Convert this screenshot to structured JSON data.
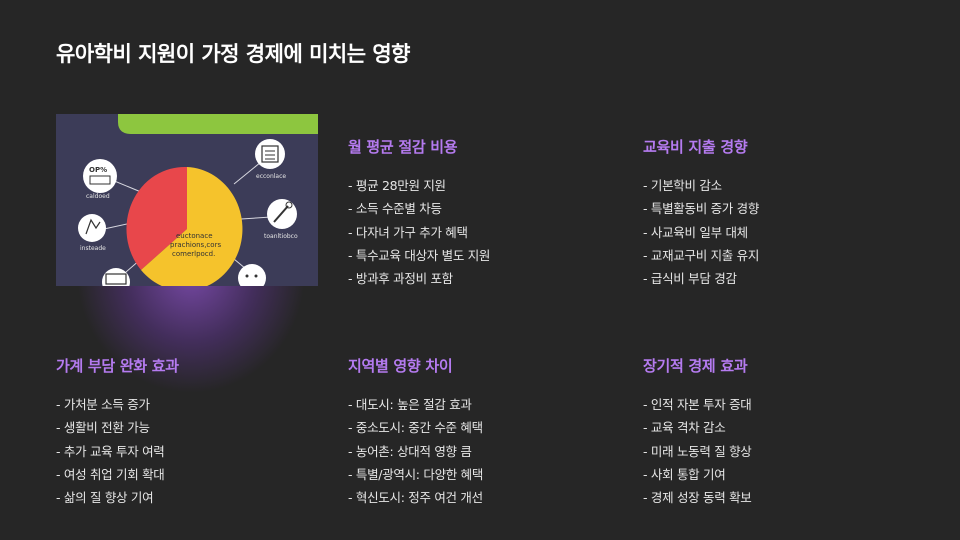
{
  "title": "유아학비 지원이 가정 경제에 미치는 영향",
  "image": {
    "icon_labels": [
      "OP%",
      "caldoed",
      "insteade",
      "ecconlace",
      "toanltiobco"
    ],
    "center_text": [
      "euctonace",
      "prachions,cors",
      "comerlpocd."
    ],
    "colors": {
      "pie_red": "#e8474b",
      "pie_yellow": "#f5c32c",
      "panel": "#3c3c58",
      "accent_green": "#8dc63f"
    }
  },
  "sections": [
    {
      "id": "monthly",
      "heading": "월 평균 절감 비용",
      "items": [
        "평균 28만원 지원",
        "소득 수준별 차등",
        "다자녀 가구 추가 혜택",
        "특수교육 대상자 별도 지원",
        "방과후 과정비 포함"
      ]
    },
    {
      "id": "education",
      "heading": "교육비 지출 경향",
      "items": [
        "기본학비 감소",
        "특별활동비 증가 경향",
        "사교육비 일부 대체",
        "교재교구비 지출 유지",
        "급식비 부담 경감"
      ]
    },
    {
      "id": "household",
      "heading": "가계 부담 완화 효과",
      "items": [
        "가처분 소득 증가",
        "생활비 전환 가능",
        "추가 교육 투자 여력",
        "여성 취업 기회 확대",
        "삶의 질 향상 기여"
      ]
    },
    {
      "id": "regional",
      "heading": "지역별 영향 차이",
      "items": [
        "대도시: 높은 절감 효과",
        "중소도시: 중간 수준 혜택",
        "농어촌: 상대적 영향 큼",
        "특별/광역시: 다양한 혜택",
        "혁신도시: 정주 여건 개선"
      ]
    },
    {
      "id": "longterm",
      "heading": "장기적 경제 효과",
      "items": [
        "인적 자본 투자 증대",
        "교육 격차 감소",
        "미래 노동력 질 향상",
        "사회 통합 기여",
        "경제 성장 동력 확보"
      ]
    }
  ],
  "colors": {
    "background": "#262626",
    "heading_accent": "#b57bf0",
    "text": "#e6e6e6"
  }
}
